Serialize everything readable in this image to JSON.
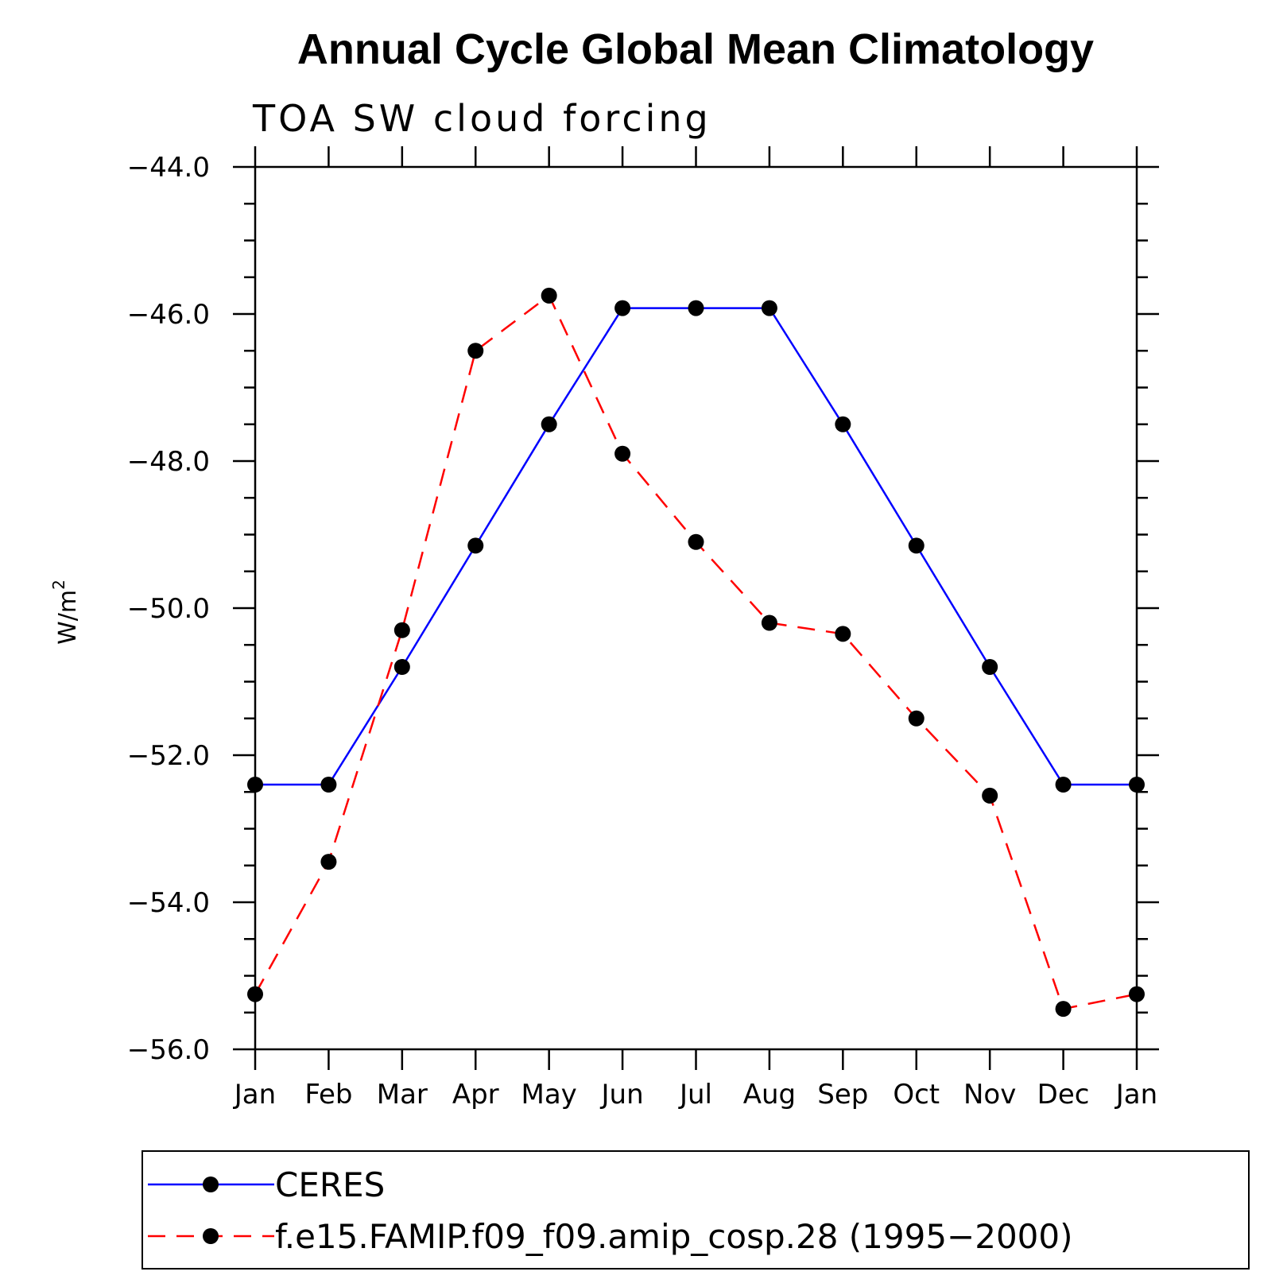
{
  "chart_data": {
    "type": "line",
    "title": "Annual Cycle Global Mean Climatology",
    "subtitle": "TOA SW cloud forcing",
    "ylabel": "W/m",
    "ylabel_superscript": "2",
    "xlabel": "",
    "ylim": [
      -56.0,
      -44.0
    ],
    "y_ticks": [
      -44.0,
      -46.0,
      -48.0,
      -50.0,
      -52.0,
      -54.0,
      -56.0
    ],
    "y_tick_labels": [
      "−44.0",
      "−46.0",
      "−48.0",
      "−50.0",
      "−52.0",
      "−54.0",
      "−56.0"
    ],
    "y_minor_step": 0.5,
    "categories": [
      "Jan",
      "Feb",
      "Mar",
      "Apr",
      "May",
      "Jun",
      "Jul",
      "Aug",
      "Sep",
      "Oct",
      "Nov",
      "Dec",
      "Jan"
    ],
    "grid": false,
    "legend_position": "bottom",
    "series": [
      {
        "name": "CERES",
        "color": "#0000ff",
        "dash": "solid",
        "values": [
          -52.4,
          -52.4,
          -50.8,
          -49.15,
          -47.5,
          -45.92,
          -45.92,
          -45.92,
          -47.5,
          -49.15,
          -50.8,
          -52.4,
          -52.4
        ]
      },
      {
        "name": "f.e15.FAMIP.f09_f09.amip_cosp.28 (1995−2000)",
        "color": "#ff0000",
        "dash": "dashed",
        "values": [
          -55.25,
          -53.45,
          -50.3,
          -46.5,
          -45.75,
          -47.9,
          -49.1,
          -50.2,
          -50.35,
          -51.5,
          -52.55,
          -55.45,
          -55.25
        ]
      }
    ]
  }
}
